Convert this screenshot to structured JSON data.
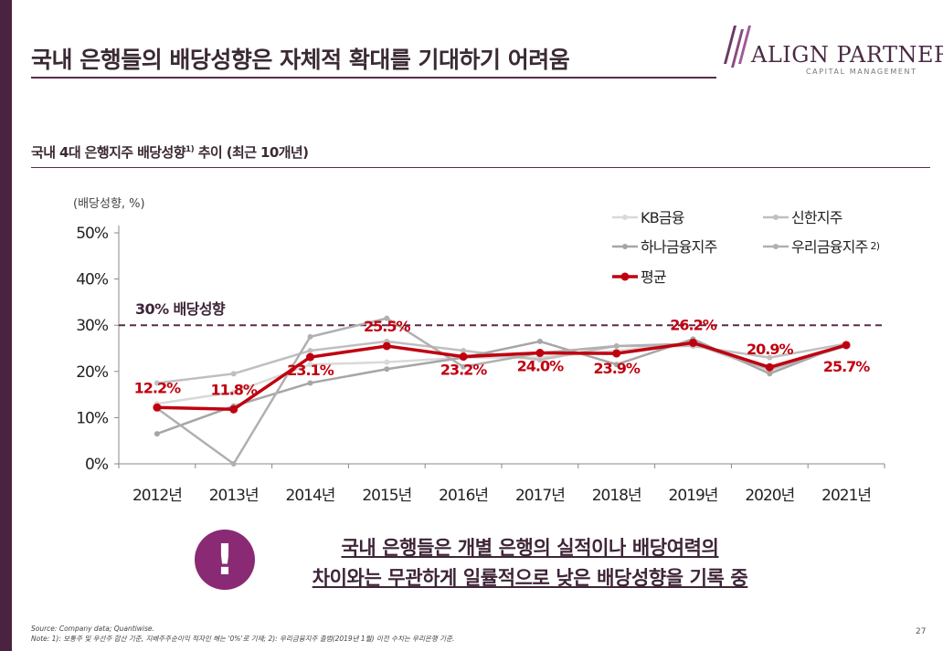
{
  "header": {
    "title": "국내 은행들의 배당성향은 자체적 확대를 기대하기 어려움",
    "logo_main": "ALIGN PARTNERS",
    "logo_sub": "CAPITAL MANAGEMENT"
  },
  "section": {
    "subtitle": "국내 4대 은행지주 배당성향",
    "subtitle_sup": "1)",
    "subtitle_suffix": " 추이 (최근 10개년)"
  },
  "chart_data": {
    "type": "line",
    "unit_label": "(배당성향, %)",
    "categories": [
      "2012년",
      "2013년",
      "2014년",
      "2015년",
      "2016년",
      "2017년",
      "2018년",
      "2019년",
      "2020년",
      "2021년"
    ],
    "ylim": [
      0,
      50
    ],
    "yticks": [
      0,
      10,
      20,
      30,
      40,
      50
    ],
    "ytick_labels": [
      "0%",
      "10%",
      "20%",
      "30%",
      "40%",
      "50%"
    ],
    "series": [
      {
        "name": "KB금융",
        "color": "#d9d9d9",
        "values": [
          13.0,
          15.5,
          21.5,
          22.0,
          23.0,
          23.0,
          24.5,
          26.0,
          20.0,
          26.0
        ]
      },
      {
        "name": "신한지주",
        "color": "#bfbfbf",
        "values": [
          17.5,
          19.5,
          24.5,
          26.5,
          24.5,
          22.5,
          25.5,
          25.5,
          23.0,
          26.0
        ]
      },
      {
        "name": "하나금융지주",
        "color": "#a6a6a6",
        "values": [
          6.5,
          12.5,
          17.5,
          20.5,
          23.0,
          26.5,
          21.5,
          27.0,
          19.5,
          26.0
        ]
      },
      {
        "name": "우리금융지주",
        "color": "#b0b0b0",
        "values": [
          12.0,
          0.0,
          27.5,
          31.5,
          21.0,
          24.0,
          25.5,
          26.0,
          20.5,
          25.5
        ]
      }
    ],
    "average": {
      "name": "평균",
      "color": "#c0000f",
      "values": [
        12.2,
        11.8,
        23.1,
        25.5,
        23.2,
        24.0,
        23.9,
        26.2,
        20.9,
        25.7
      ],
      "labels": [
        "12.2%",
        "11.8%",
        "23.1%",
        "25.5%",
        "23.2%",
        "24.0%",
        "23.9%",
        "26.2%",
        "20.9%",
        "25.7%"
      ]
    },
    "reference_line": {
      "value": 30,
      "label": "30% 배당성향",
      "color": "#5a2c4c"
    },
    "legend": [
      {
        "name": "KB금융",
        "sup": ""
      },
      {
        "name": "신한지주",
        "sup": ""
      },
      {
        "name": "하나금융지주",
        "sup": ""
      },
      {
        "name": "우리금융지주",
        "sup": "2)"
      },
      {
        "name": "평균",
        "sup": ""
      }
    ]
  },
  "callout": {
    "icon": "!",
    "line1": "국내 은행들은 개별 은행의 실적이나 배당여력의",
    "line2": "차이와는 무관하게 일률적으로 낮은 배당성향을 기록 중"
  },
  "footer": {
    "source": "Source: Company data; Quantiwise.",
    "note": "Note: 1): 보통주 및 우선주 합산 기준, 지배주주순이익 적자인 해는 '0%'로 기재; 2): 우리금융지주 출범(2019년 1월) 이전 수치는 우리은행 기준.",
    "page": "27"
  },
  "colors": {
    "brand": "#5a2c4c",
    "accent": "#8a2a74",
    "average": "#c0000f"
  }
}
